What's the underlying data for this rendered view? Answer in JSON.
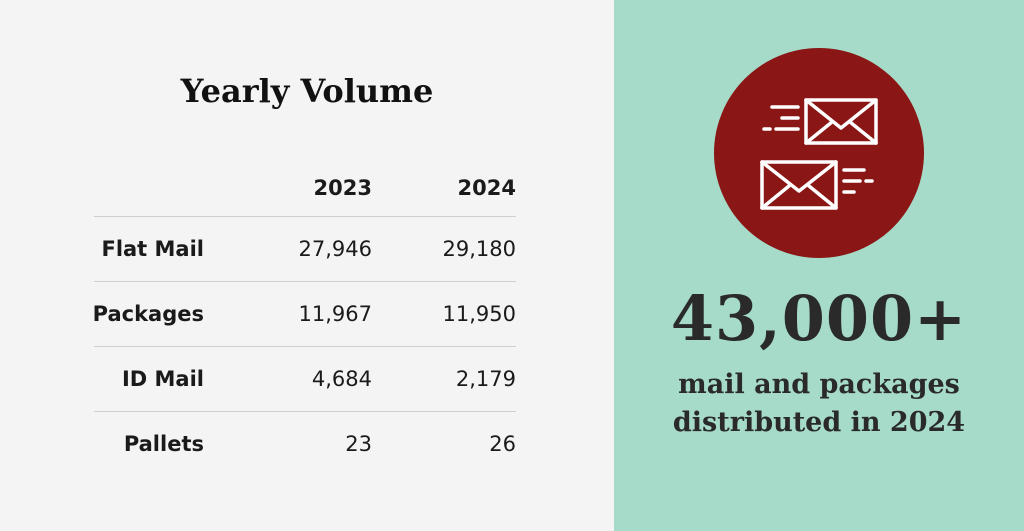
{
  "table": {
    "title": "Yearly Volume",
    "headers": [
      "",
      "2023",
      "2024"
    ],
    "rows": [
      {
        "label": "Flat Mail",
        "y2023": "27,946",
        "y2024": "29,180"
      },
      {
        "label": "Packages",
        "y2023": "11,967",
        "y2024": "11,950"
      },
      {
        "label": "ID Mail",
        "y2023": "4,684",
        "y2024": "2,179"
      },
      {
        "label": "Pallets",
        "y2023": "23",
        "y2024": "26"
      }
    ]
  },
  "highlight": {
    "icon": "envelopes-icon",
    "stat": "43,000+",
    "desc_line1": "mail and packages",
    "desc_line2": "distributed in 2024"
  },
  "colors": {
    "left_background": "#f4f4f4",
    "right_background": "#a6dbc9",
    "circle": "#8a1716",
    "icon_stroke": "#ffffff",
    "text": "#2a2a2a"
  }
}
